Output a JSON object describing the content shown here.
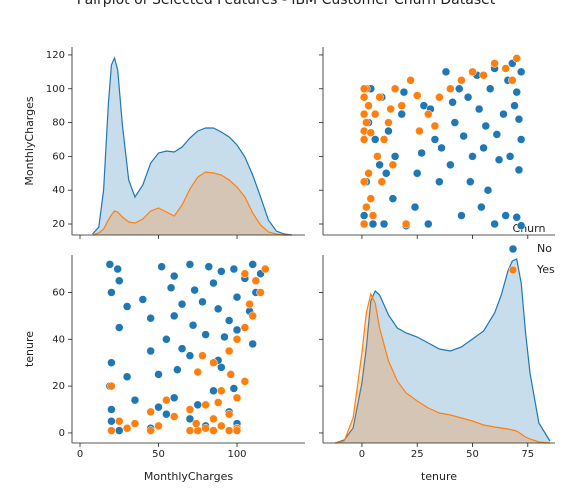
{
  "title": "Pairplot of Selected Features - IBM Customer Churn Dataset",
  "legend_title": "Churn",
  "chart_data": [
    {
      "type": "kde",
      "ylabel": "MonthlyCharges",
      "xlim": [
        -5.1,
        143.3
      ],
      "xticks": [
        0,
        50,
        100
      ],
      "show_xtick_labels": false,
      "ylim": [
        13.5,
        124.7
      ],
      "yticks": [
        20,
        40,
        60,
        80,
        100,
        120
      ],
      "show_ytick_labels": true,
      "y2lim": [
        0,
        0.0188
      ],
      "x": [
        8,
        12,
        15,
        18,
        20,
        22,
        24,
        27,
        31,
        35,
        40,
        45,
        50,
        55,
        60,
        65,
        70,
        75,
        80,
        85,
        90,
        95,
        100,
        105,
        110,
        115,
        120,
        125,
        130,
        135
      ],
      "series": [
        {
          "name": "No",
          "color": "#1f77b4",
          "axis": "y2",
          "values": [
            0.0001,
            0.0008,
            0.0045,
            0.013,
            0.017,
            0.0177,
            0.0165,
            0.011,
            0.0055,
            0.0038,
            0.005,
            0.0072,
            0.0082,
            0.0084,
            0.0083,
            0.0088,
            0.0097,
            0.0104,
            0.0107,
            0.0107,
            0.0103,
            0.0098,
            0.009,
            0.0078,
            0.006,
            0.0038,
            0.0015,
            0.0004,
            0.0001,
            0
          ]
        },
        {
          "name": "Yes",
          "color": "#ff7f0e",
          "axis": "y2",
          "values": [
            0,
            0.0002,
            0.0006,
            0.0015,
            0.002,
            0.0024,
            0.0023,
            0.0018,
            0.0013,
            0.0012,
            0.0016,
            0.0024,
            0.0027,
            0.0023,
            0.0019,
            0.003,
            0.0046,
            0.0058,
            0.0063,
            0.0062,
            0.006,
            0.0055,
            0.0048,
            0.0038,
            0.0022,
            0.001,
            0.0003,
            0.0001,
            0,
            0
          ]
        }
      ]
    },
    {
      "type": "scatter",
      "xlim": [
        -17.6,
        87.3
      ],
      "xticks": [
        0,
        25,
        50,
        75
      ],
      "show_xtick_labels": false,
      "ylim": [
        13.5,
        124.7
      ],
      "yticks": [
        20,
        40,
        60,
        80,
        100,
        120
      ],
      "show_ytick_labels": false,
      "series": [
        {
          "name": "No",
          "color": "#1f77b4",
          "x": [
            1,
            5,
            10,
            20,
            30,
            45,
            60,
            70,
            72,
            65,
            2,
            8,
            15,
            25,
            35,
            40,
            50,
            55,
            62,
            71,
            3,
            12,
            18,
            28,
            33,
            42,
            48,
            53,
            58,
            66,
            4,
            9,
            22,
            38,
            44,
            52,
            60,
            68,
            72,
            70,
            6,
            14,
            24,
            36,
            46,
            56,
            64,
            69,
            72,
            57,
            11,
            27,
            31,
            41,
            49,
            54,
            61,
            67,
            71,
            19
          ],
          "values": [
            25,
            20,
            20,
            19,
            20,
            25,
            20,
            24,
            19,
            25,
            45,
            55,
            60,
            50,
            45,
            55,
            60,
            65,
            58,
            52,
            80,
            75,
            85,
            90,
            70,
            80,
            95,
            88,
            100,
            105,
            100,
            95,
            105,
            110,
            100,
            108,
            112,
            115,
            110,
            98,
            70,
            35,
            30,
            65,
            72,
            78,
            85,
            90,
            70,
            40,
            50,
            62,
            88,
            92,
            45,
            30,
            73,
            60,
            82,
            98
          ]
        },
        {
          "name": "Yes",
          "color": "#ff7f0e",
          "x": [
            1,
            1,
            1,
            1,
            1,
            1,
            2,
            2,
            3,
            3,
            4,
            5,
            6,
            8,
            10,
            12,
            15,
            18,
            22,
            26,
            30,
            35,
            40,
            45,
            50,
            55,
            60,
            65,
            70,
            68,
            7,
            9,
            14,
            20,
            2,
            4,
            13,
            25,
            33,
            1
          ],
          "values": [
            20,
            45,
            70,
            75,
            85,
            95,
            80,
            100,
            90,
            50,
            74,
            25,
            85,
            95,
            70,
            80,
            100,
            90,
            105,
            75,
            85,
            95,
            100,
            105,
            110,
            108,
            115,
            112,
            118,
            105,
            60,
            45,
            55,
            20,
            30,
            35,
            88,
            96,
            78,
            100
          ]
        }
      ]
    },
    {
      "type": "scatter",
      "xlabel": "MonthlyCharges",
      "ylabel": "tenure",
      "xlim": [
        -5.1,
        143.3
      ],
      "xticks": [
        0,
        50,
        100
      ],
      "show_xtick_labels": true,
      "ylim": [
        -4.3,
        76
      ],
      "yticks": [
        0,
        20,
        40,
        60
      ],
      "show_ytick_labels": true,
      "series": [
        {
          "name": "No",
          "color": "#1f77b4",
          "x": [
            25,
            20,
            20,
            19,
            20,
            25,
            20,
            24,
            19,
            25,
            45,
            55,
            60,
            50,
            45,
            55,
            60,
            65,
            58,
            52,
            80,
            75,
            85,
            90,
            70,
            80,
            95,
            88,
            100,
            105,
            100,
            95,
            105,
            110,
            100,
            108,
            112,
            115,
            110,
            98,
            70,
            35,
            30,
            65,
            72,
            78,
            85,
            90,
            70,
            40,
            50,
            62,
            88,
            92,
            45,
            30,
            73,
            60,
            82,
            98
          ],
          "values": [
            1,
            5,
            10,
            20,
            30,
            45,
            60,
            70,
            72,
            65,
            2,
            8,
            15,
            25,
            35,
            40,
            50,
            55,
            62,
            71,
            3,
            12,
            18,
            28,
            33,
            42,
            48,
            53,
            58,
            66,
            4,
            9,
            22,
            38,
            44,
            52,
            60,
            68,
            72,
            70,
            6,
            14,
            24,
            36,
            46,
            56,
            64,
            69,
            72,
            57,
            11,
            27,
            31,
            41,
            49,
            54,
            61,
            67,
            71,
            19
          ]
        },
        {
          "name": "Yes",
          "color": "#ff7f0e",
          "x": [
            20,
            45,
            70,
            75,
            85,
            95,
            80,
            100,
            90,
            50,
            74,
            25,
            85,
            95,
            70,
            80,
            100,
            90,
            105,
            75,
            85,
            95,
            100,
            105,
            110,
            108,
            115,
            112,
            118,
            105,
            60,
            45,
            55,
            20,
            30,
            35,
            88,
            96,
            78,
            100
          ],
          "values": [
            1,
            1,
            1,
            1,
            1,
            1,
            2,
            2,
            3,
            3,
            4,
            5,
            6,
            8,
            10,
            12,
            15,
            18,
            22,
            26,
            30,
            35,
            40,
            45,
            50,
            55,
            60,
            65,
            70,
            68,
            7,
            9,
            14,
            20,
            2,
            4,
            13,
            25,
            33,
            1
          ]
        }
      ]
    },
    {
      "type": "kde",
      "xlabel": "tenure",
      "xlim": [
        -17.6,
        87.3
      ],
      "xticks": [
        0,
        25,
        50,
        75
      ],
      "show_xtick_labels": true,
      "ylim": [
        -4.3,
        76
      ],
      "yticks": [
        0,
        20,
        40,
        60
      ],
      "show_ytick_labels": false,
      "y2lim": [
        0,
        0.0188
      ],
      "x": [
        -12,
        -8,
        -4,
        0,
        2,
        4,
        6,
        8,
        12,
        16,
        20,
        25,
        30,
        35,
        40,
        45,
        50,
        55,
        60,
        63,
        66,
        68,
        70,
        72,
        74,
        76,
        80,
        85
      ],
      "series": [
        {
          "name": "No",
          "color": "#1f77b4",
          "axis": "y2",
          "values": [
            0,
            0.0003,
            0.0015,
            0.006,
            0.0095,
            0.0142,
            0.0152,
            0.0148,
            0.0128,
            0.0115,
            0.011,
            0.0106,
            0.01,
            0.0094,
            0.0092,
            0.0096,
            0.0104,
            0.0112,
            0.013,
            0.0148,
            0.0172,
            0.0182,
            0.0184,
            0.016,
            0.011,
            0.007,
            0.002,
            0.0002
          ]
        },
        {
          "name": "Yes",
          "color": "#ff7f0e",
          "axis": "y2",
          "values": [
            0,
            0.0002,
            0.0025,
            0.009,
            0.013,
            0.0149,
            0.014,
            0.0115,
            0.0082,
            0.0062,
            0.005,
            0.0042,
            0.0035,
            0.003,
            0.0028,
            0.0025,
            0.0022,
            0.0018,
            0.0016,
            0.0015,
            0.0014,
            0.0013,
            0.0012,
            0.0009,
            0.0006,
            0.0004,
            0.0001,
            0
          ]
        }
      ]
    }
  ]
}
